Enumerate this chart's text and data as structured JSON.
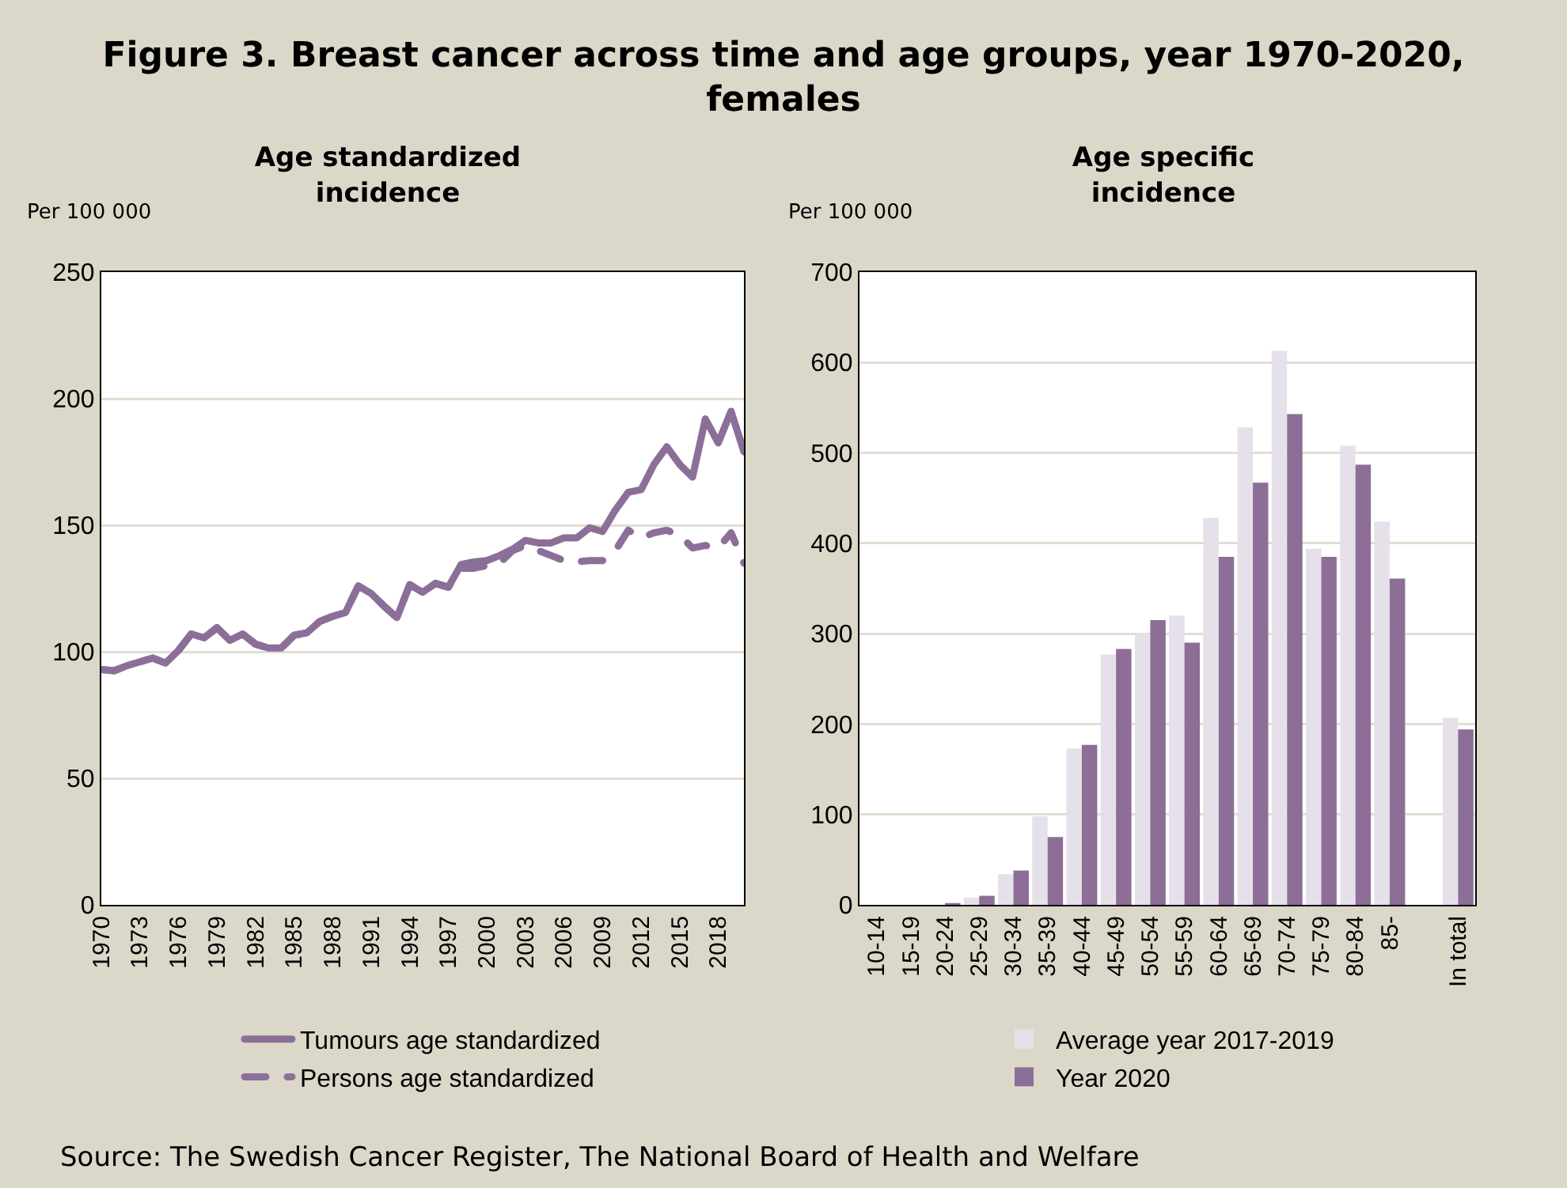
{
  "chart_data": [
    {
      "type": "line",
      "title": "Figure 3. Breast cancer across time and age groups, year 1970-2020, females",
      "subtitle": "Age standardized incidence",
      "ylabel": "Per 100 000",
      "x": [
        1970,
        1971,
        1972,
        1973,
        1974,
        1975,
        1976,
        1977,
        1978,
        1979,
        1980,
        1981,
        1982,
        1983,
        1984,
        1985,
        1986,
        1987,
        1988,
        1989,
        1990,
        1991,
        1992,
        1993,
        1994,
        1995,
        1996,
        1997,
        1998,
        1999,
        2000,
        2001,
        2002,
        2003,
        2004,
        2005,
        2006,
        2007,
        2008,
        2009,
        2010,
        2011,
        2012,
        2013,
        2014,
        2015,
        2016,
        2017,
        2018,
        2019,
        2020
      ],
      "xlim": [
        1970,
        2020
      ],
      "xticks": [
        1970,
        1973,
        1976,
        1979,
        1982,
        1985,
        1988,
        1991,
        1994,
        1997,
        2000,
        2003,
        2006,
        2009,
        2012,
        2015,
        2018
      ],
      "ylim": [
        0,
        250
      ],
      "yticks": [
        0,
        50,
        100,
        150,
        200,
        250
      ],
      "grid": "y",
      "legend": "bottom",
      "series": [
        {
          "name": "Tumours age standardized",
          "color": "#8c6f98",
          "line_style": "solid",
          "values": [
            93,
            92.5,
            94.5,
            96,
            97.5,
            95.5,
            100.5,
            107,
            105.5,
            109.5,
            104.5,
            107,
            103,
            101.5,
            101.5,
            106.5,
            107.5,
            112,
            114,
            115.5,
            126,
            123,
            118,
            113.5,
            126.5,
            123.5,
            127,
            125.5,
            134.5,
            135.5,
            136,
            138,
            140.5,
            144,
            143,
            143,
            145,
            145,
            149,
            147.5,
            156,
            163,
            164,
            174,
            181,
            174,
            169,
            192,
            182.5,
            195,
            179
          ]
        },
        {
          "name": "Persons age standardized",
          "color": "#8c6f98",
          "line_style": "dashed",
          "values": [
            93,
            92.5,
            94.5,
            96,
            97.5,
            95.5,
            100.5,
            107,
            105.5,
            109.5,
            104.5,
            107,
            103,
            101.5,
            101.5,
            106.5,
            107.5,
            112,
            114,
            115.5,
            126,
            123,
            118,
            113.5,
            126.5,
            123.5,
            127,
            125.5,
            133,
            133,
            134,
            135,
            140,
            142,
            140,
            138,
            136,
            135.5,
            136,
            136,
            140,
            148,
            145,
            147,
            148,
            146,
            141,
            142,
            141,
            147,
            135
          ]
        }
      ]
    },
    {
      "type": "bar",
      "title": "Age specific incidence",
      "ylabel": "Per 100 000",
      "categories": [
        "10-14",
        "15-19",
        "20-24",
        "25-29",
        "30-34",
        "35-39",
        "40-44",
        "45-49",
        "50-54",
        "55-59",
        "60-64",
        "65-69",
        "70-74",
        "75-79",
        "80-84",
        "85-",
        null,
        "In total"
      ],
      "ylim": [
        0,
        700
      ],
      "yticks": [
        0,
        100,
        200,
        300,
        400,
        500,
        600,
        700
      ],
      "grid": "y",
      "legend": "bottom",
      "series": [
        {
          "name": "Average year 2017-2019",
          "color": "#e6e0ea",
          "values": [
            null,
            null,
            null,
            8,
            34,
            98,
            173,
            277,
            300,
            320,
            428,
            528,
            613,
            394,
            508,
            424,
            null,
            207
          ]
        },
        {
          "name": "Year 2020",
          "color": "#8c6e97",
          "values": [
            0,
            0,
            2,
            10,
            38,
            75,
            177,
            283,
            315,
            290,
            385,
            467,
            543,
            385,
            487,
            361,
            null,
            194
          ]
        }
      ],
      "annotations": [
        "Source: The Swedish Cancer Register, The National Board of Health and Welfare"
      ]
    }
  ]
}
